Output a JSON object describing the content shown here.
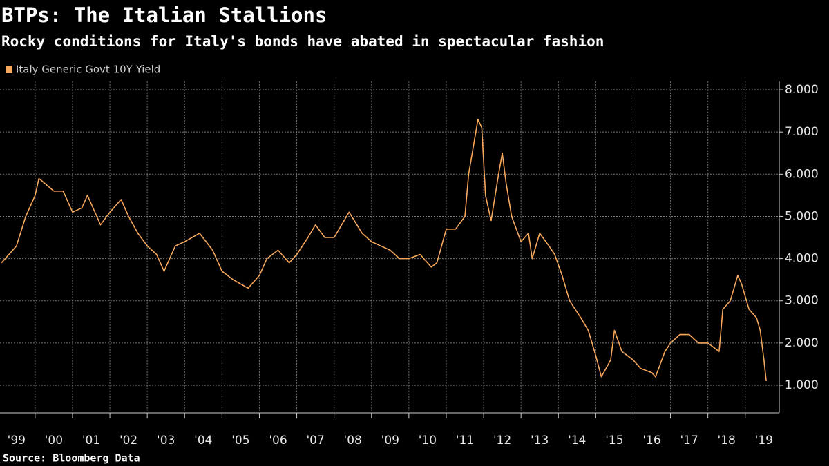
{
  "chart_data": {
    "type": "line",
    "title": "BTPs: The Italian Stallions",
    "subtitle": "Rocky conditions for Italy's bonds have abated in spectacular fashion",
    "source": "Source: Bloomberg Data",
    "grid": true,
    "xlim": [
      1999.06,
      2019.91
    ],
    "ylim": [
      0.4,
      8.2
    ],
    "yticks": [
      {
        "value": 1,
        "label": "1.000"
      },
      {
        "value": 2,
        "label": "2.000"
      },
      {
        "value": 3,
        "label": "3.000"
      },
      {
        "value": 4,
        "label": "4.000"
      },
      {
        "value": 5,
        "label": "5.000"
      },
      {
        "value": 6,
        "label": "6.000"
      },
      {
        "value": 7,
        "label": "7.000"
      },
      {
        "value": 8,
        "label": "8.000"
      }
    ],
    "xticks": [
      {
        "value": 1999,
        "label": "'99"
      },
      {
        "value": 2000,
        "label": "'00"
      },
      {
        "value": 2001,
        "label": "'01"
      },
      {
        "value": 2002,
        "label": "'02"
      },
      {
        "value": 2003,
        "label": "'03"
      },
      {
        "value": 2004,
        "label": "'04"
      },
      {
        "value": 2005,
        "label": "'05"
      },
      {
        "value": 2006,
        "label": "'06"
      },
      {
        "value": 2007,
        "label": "'07"
      },
      {
        "value": 2008,
        "label": "'08"
      },
      {
        "value": 2009,
        "label": "'09"
      },
      {
        "value": 2010,
        "label": "'10"
      },
      {
        "value": 2011,
        "label": "'11"
      },
      {
        "value": 2012,
        "label": "'12"
      },
      {
        "value": 2013,
        "label": "'13"
      },
      {
        "value": 2014,
        "label": "'14"
      },
      {
        "value": 2015,
        "label": "'15"
      },
      {
        "value": 2016,
        "label": "'16"
      },
      {
        "value": 2017,
        "label": "'17"
      },
      {
        "value": 2018,
        "label": "'18"
      },
      {
        "value": 2019,
        "label": "'19"
      }
    ],
    "x": [
      1999.1,
      1999.5,
      1999.75,
      2000.0,
      2000.1,
      2000.5,
      2000.75,
      2001.0,
      2001.25,
      2001.4,
      2001.75,
      2002.0,
      2002.3,
      2002.5,
      2002.75,
      2003.0,
      2003.25,
      2003.45,
      2003.75,
      2004.0,
      2004.4,
      2004.75,
      2005.0,
      2005.3,
      2005.7,
      2006.0,
      2006.2,
      2006.5,
      2006.8,
      2007.0,
      2007.3,
      2007.5,
      2007.75,
      2008.0,
      2008.4,
      2008.75,
      2009.0,
      2009.25,
      2009.5,
      2009.75,
      2010.0,
      2010.3,
      2010.6,
      2010.75,
      2011.0,
      2011.25,
      2011.5,
      2011.6,
      2011.85,
      2011.95,
      2012.05,
      2012.2,
      2012.4,
      2012.5,
      2012.6,
      2012.75,
      2013.0,
      2013.2,
      2013.3,
      2013.5,
      2013.75,
      2013.9,
      2014.1,
      2014.3,
      2014.6,
      2014.8,
      2015.0,
      2015.15,
      2015.4,
      2015.5,
      2015.7,
      2016.0,
      2016.2,
      2016.5,
      2016.6,
      2016.85,
      2017.0,
      2017.25,
      2017.5,
      2017.75,
      2018.0,
      2018.3,
      2018.4,
      2018.6,
      2018.8,
      2018.9,
      2019.1,
      2019.3,
      2019.4,
      2019.5,
      2019.56
    ],
    "series": [
      {
        "name": "Italy Generic Govt 10Y Yield",
        "color": "#f7a85c",
        "values": [
          3.9,
          4.3,
          5.0,
          5.5,
          5.9,
          5.6,
          5.6,
          5.1,
          5.2,
          5.5,
          4.8,
          5.1,
          5.4,
          5.0,
          4.6,
          4.3,
          4.1,
          3.7,
          4.3,
          4.4,
          4.6,
          4.2,
          3.7,
          3.5,
          3.3,
          3.6,
          4.0,
          4.2,
          3.9,
          4.1,
          4.5,
          4.8,
          4.5,
          4.5,
          5.1,
          4.6,
          4.4,
          4.3,
          4.2,
          4.0,
          4.0,
          4.1,
          3.8,
          3.9,
          4.7,
          4.7,
          5.0,
          6.0,
          7.3,
          7.1,
          5.5,
          4.9,
          6.0,
          6.5,
          5.8,
          5.0,
          4.4,
          4.6,
          4.0,
          4.6,
          4.3,
          4.1,
          3.6,
          3.0,
          2.6,
          2.3,
          1.7,
          1.2,
          1.6,
          2.3,
          1.8,
          1.6,
          1.4,
          1.3,
          1.2,
          1.8,
          2.0,
          2.2,
          2.2,
          2.0,
          2.0,
          1.8,
          2.8,
          3.0,
          3.6,
          3.4,
          2.8,
          2.6,
          2.3,
          1.6,
          1.1
        ]
      }
    ]
  }
}
